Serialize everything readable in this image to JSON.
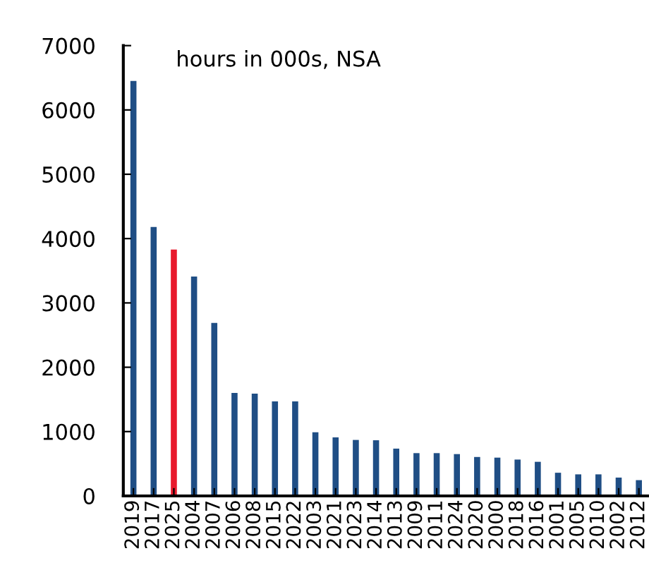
{
  "chart_data": {
    "type": "bar",
    "annotations": [
      "hours in 000s, NSA"
    ],
    "categories": [
      "2019",
      "2017",
      "2025",
      "2004",
      "2007",
      "2006",
      "2008",
      "2015",
      "2022",
      "2003",
      "2021",
      "2023",
      "2014",
      "2013",
      "2009",
      "2011",
      "2024",
      "2020",
      "2000",
      "2018",
      "2016",
      "2001",
      "2005",
      "2010",
      "2002",
      "2012"
    ],
    "values": [
      6450,
      4180,
      3830,
      3410,
      2690,
      1600,
      1590,
      1470,
      1470,
      990,
      910,
      870,
      865,
      735,
      665,
      665,
      650,
      605,
      595,
      565,
      530,
      360,
      335,
      335,
      285,
      245
    ],
    "colors": [
      "#1f4e85",
      "#1f4e85",
      "#e8192c",
      "#1f4e85",
      "#1f4e85",
      "#1f4e85",
      "#1f4e85",
      "#1f4e85",
      "#1f4e85",
      "#1f4e85",
      "#1f4e85",
      "#1f4e85",
      "#1f4e85",
      "#1f4e85",
      "#1f4e85",
      "#1f4e85",
      "#1f4e85",
      "#1f4e85",
      "#1f4e85",
      "#1f4e85",
      "#1f4e85",
      "#1f4e85",
      "#1f4e85",
      "#1f4e85",
      "#1f4e85",
      "#1f4e85"
    ],
    "ylim": [
      0,
      7000
    ],
    "yticks": [
      0,
      1000,
      2000,
      3000,
      4000,
      5000,
      6000,
      7000
    ],
    "grid": false
  }
}
